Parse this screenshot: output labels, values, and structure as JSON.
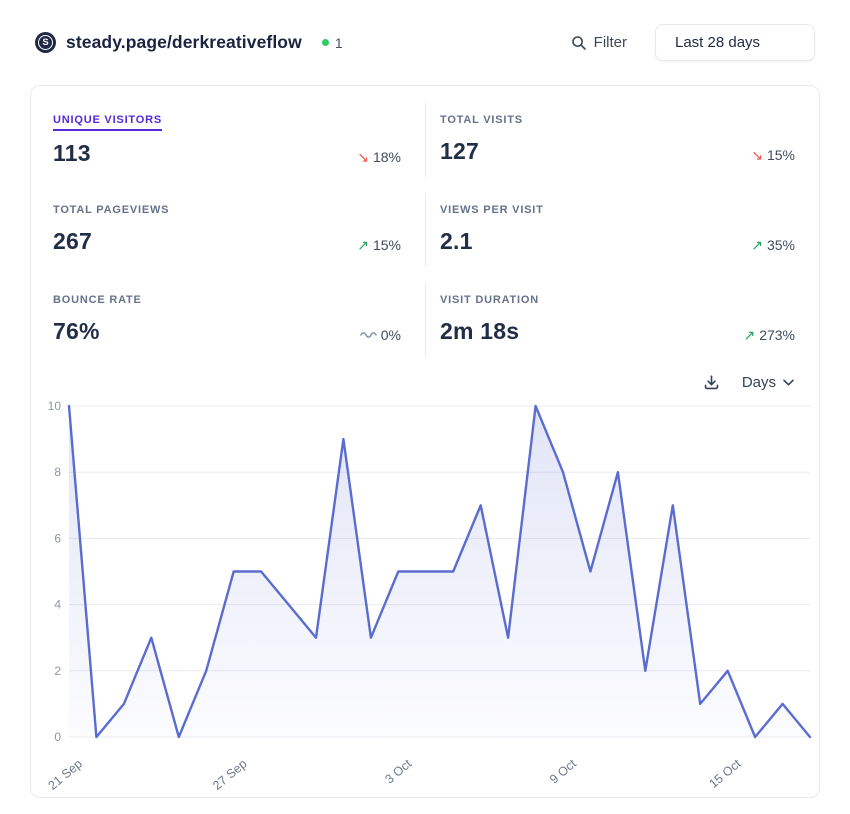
{
  "header": {
    "logo_letter": "S",
    "site_name": "steady.page/derkreativeflow",
    "current_visitors": "1",
    "filter_label": "Filter",
    "date_range_label": "Last 28 days"
  },
  "metrics": [
    {
      "label": "UNIQUE VISITORS",
      "value": "113",
      "change": "18%",
      "direction": "down",
      "selected": true
    },
    {
      "label": "TOTAL VISITS",
      "value": "127",
      "change": "15%",
      "direction": "down",
      "selected": false
    },
    {
      "label": "TOTAL PAGEVIEWS",
      "value": "267",
      "change": "15%",
      "direction": "up",
      "selected": false
    },
    {
      "label": "VIEWS PER VISIT",
      "value": "2.1",
      "change": "35%",
      "direction": "up",
      "selected": false
    },
    {
      "label": "BOUNCE RATE",
      "value": "76%",
      "change": "0%",
      "direction": "neutral",
      "selected": false
    },
    {
      "label": "VISIT DURATION",
      "value": "2m 18s",
      "change": "273%",
      "direction": "up",
      "selected": false
    }
  ],
  "chart_controls": {
    "interval_label": "Days"
  },
  "chart_data": {
    "type": "area",
    "metric": "Unique visitors per day",
    "dates": [
      "21 Sep",
      "22 Sep",
      "23 Sep",
      "24 Sep",
      "25 Sep",
      "26 Sep",
      "27 Sep",
      "28 Sep",
      "29 Sep",
      "30 Sep",
      "1 Oct",
      "2 Oct",
      "3 Oct",
      "4 Oct",
      "5 Oct",
      "6 Oct",
      "7 Oct",
      "8 Oct",
      "9 Oct",
      "10 Oct",
      "11 Oct",
      "12 Oct",
      "13 Oct",
      "14 Oct",
      "15 Oct",
      "16 Oct",
      "17 Oct",
      "18 Oct"
    ],
    "values": [
      10,
      0,
      1,
      3,
      0,
      2,
      5,
      5,
      4,
      3,
      9,
      3,
      5,
      5,
      5,
      7,
      3,
      10,
      8,
      5,
      8,
      2,
      7,
      1,
      2,
      0,
      1,
      0
    ],
    "x_tick_labels": [
      "21 Sep",
      "27 Sep",
      "3 Oct",
      "9 Oct",
      "15 Oct"
    ],
    "x_tick_indices": [
      0,
      6,
      12,
      18,
      24
    ],
    "y_ticks": [
      0,
      2,
      4,
      6,
      8,
      10
    ],
    "ylim": [
      0,
      10
    ],
    "grid": "horizontal",
    "legend": "none"
  },
  "colors": {
    "accent": "#5528dc",
    "positive": "#1fa45c",
    "negative": "#ef5350",
    "neutral-icon": "#8b95a6",
    "line": "#5b6cd0",
    "live-dot": "#2fcc66",
    "gridline": "#e9ecf1",
    "tick-text": "#8b95a6",
    "x-tick-text": "#6e7889"
  }
}
